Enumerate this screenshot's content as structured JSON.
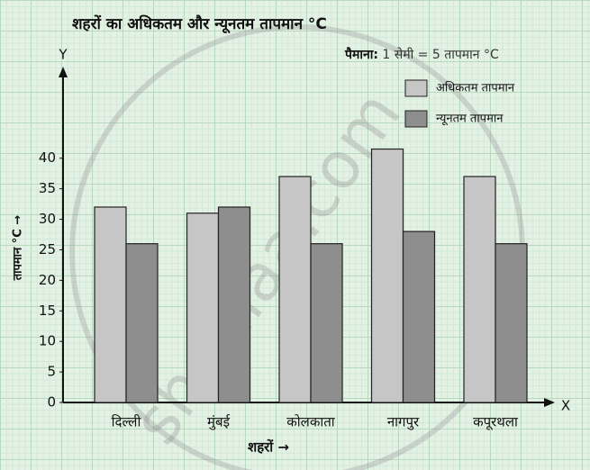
{
  "chart_data": {
    "type": "bar",
    "title": "शहरों का अधिकतम और न्यूनतम तापमान °C",
    "scale_label": "पैमाना:",
    "scale_text": "1 सेमी = 5 तापमान °C",
    "y_axis_letter": "Y",
    "x_axis_letter": "X",
    "x_label": "शहरों →",
    "y_label": "तापमान °C →",
    "categories": [
      "दिल्ली",
      "मुंबई",
      "कोलकाता",
      "नागपुर",
      "कपूरथला"
    ],
    "series": [
      {
        "name": "अधिकतम तापमान",
        "color": "#c6c6c6",
        "values": [
          32,
          31,
          37,
          41.5,
          37
        ]
      },
      {
        "name": "न्यूनतम तापमान",
        "color": "#8e8e8e",
        "values": [
          26,
          32,
          26,
          28,
          26
        ]
      }
    ],
    "ylim": [
      0,
      55
    ],
    "yticks": [
      0,
      5,
      10,
      15,
      20,
      25,
      30,
      35,
      40
    ],
    "watermark": "shaalaa.com"
  }
}
